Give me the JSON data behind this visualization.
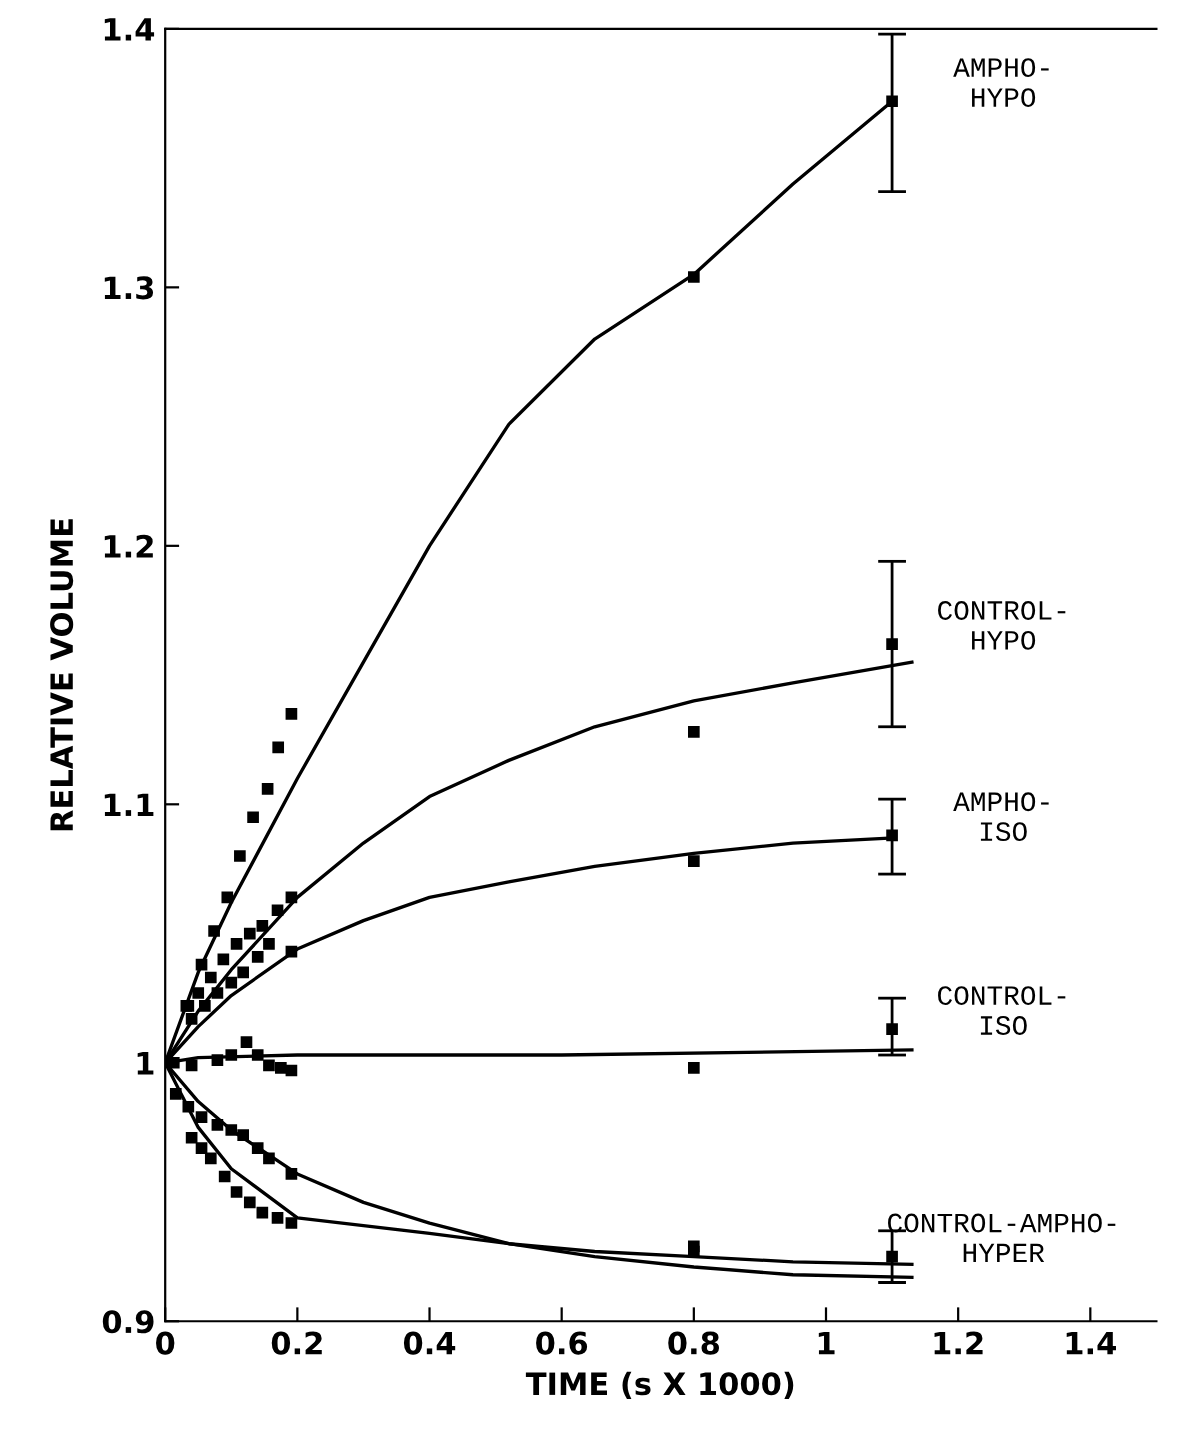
{
  "chart_data": {
    "type": "scatter",
    "xlabel": "TIME (s X 1000)",
    "ylabel": "RELATIVE VOLUME",
    "xlim": [
      0,
      1.5
    ],
    "ylim": [
      0.9,
      1.4
    ],
    "xticks": [
      0,
      0.2,
      0.4,
      0.6,
      0.8,
      1,
      1.2,
      1.4
    ],
    "yticks": [
      0.9,
      1,
      1.1,
      1.2,
      1.3,
      1.4
    ],
    "grid": false,
    "marker": "square",
    "series": [
      {
        "name": "AMPHO-\nHYPO",
        "color": "#000000",
        "x": [
          0.035,
          0.055,
          0.074,
          0.094,
          0.113,
          0.133,
          0.155,
          0.171,
          0.191,
          0.8,
          1.1
        ],
        "values": [
          1.022,
          1.038,
          1.051,
          1.064,
          1.08,
          1.095,
          1.106,
          1.122,
          1.135,
          1.304,
          1.372
        ],
        "errors": [
          null,
          null,
          null,
          null,
          null,
          null,
          null,
          null,
          null,
          null,
          [
            1.337,
            1.398
          ]
        ]
      },
      {
        "name": "CONTROL-\nHYPO",
        "color": "#000000",
        "x": [
          0.032,
          0.05,
          0.069,
          0.088,
          0.108,
          0.128,
          0.147,
          0.17,
          0.191,
          0.8,
          1.1
        ],
        "values": [
          1.022,
          1.027,
          1.033,
          1.04,
          1.046,
          1.05,
          1.053,
          1.059,
          1.064,
          1.128,
          1.162
        ],
        "errors": [
          null,
          null,
          null,
          null,
          null,
          null,
          null,
          null,
          null,
          null,
          [
            1.13,
            1.194
          ]
        ]
      },
      {
        "name": "AMPHO-\nISO",
        "color": "#000000",
        "x": [
          0.04,
          0.06,
          0.079,
          0.1,
          0.118,
          0.14,
          0.157,
          0.191,
          0.8,
          1.1
        ],
        "values": [
          1.017,
          1.022,
          1.027,
          1.031,
          1.035,
          1.041,
          1.046,
          1.043,
          1.078,
          1.088
        ],
        "errors": [
          null,
          null,
          null,
          null,
          null,
          null,
          null,
          null,
          null,
          [
            1.073,
            1.102
          ]
        ]
      },
      {
        "name": "CONTROL-\nISO",
        "color": "#000000",
        "x": [
          0.013,
          0.04,
          0.079,
          0.1,
          0.123,
          0.14,
          0.157,
          0.175,
          0.191,
          0.8,
          1.1
        ],
        "values": [
          1.0,
          0.999,
          1.001,
          1.003,
          1.008,
          1.003,
          0.999,
          0.998,
          0.997,
          0.998,
          1.013
        ],
        "errors": [
          null,
          null,
          null,
          null,
          null,
          null,
          null,
          null,
          null,
          null,
          [
            1.003,
            1.025
          ]
        ]
      },
      {
        "color": "#000000",
        "x": [
          0.035,
          0.055,
          0.079,
          0.1,
          0.118,
          0.14,
          0.157,
          0.191,
          0.8
        ],
        "values": [
          0.983,
          0.979,
          0.976,
          0.974,
          0.972,
          0.967,
          0.963,
          0.957,
          0.929
        ]
      },
      {
        "name": "CONTROL-AMPHO-\nHYPER",
        "color": "#000000",
        "x": [
          0.016,
          0.04,
          0.055,
          0.069,
          0.09,
          0.108,
          0.128,
          0.147,
          0.17,
          0.191,
          0.8,
          1.1
        ],
        "values": [
          0.988,
          0.971,
          0.967,
          0.963,
          0.956,
          0.95,
          0.946,
          0.942,
          0.94,
          0.938,
          0.927,
          0.925
        ],
        "errors": [
          null,
          null,
          null,
          null,
          null,
          null,
          null,
          null,
          null,
          null,
          null,
          [
            0.915,
            0.935
          ]
        ]
      },
      {
        "type": "line",
        "marker": "none",
        "color": "#000000",
        "x": [
          0,
          0.05,
          0.1,
          0.2,
          0.3,
          0.4,
          0.52,
          0.65,
          0.8,
          0.95,
          1.1
        ],
        "values": [
          1.0,
          1.035,
          1.062,
          1.11,
          1.155,
          1.2,
          1.247,
          1.28,
          1.305,
          1.34,
          1.372
        ]
      },
      {
        "type": "line",
        "marker": "none",
        "color": "#000000",
        "x": [
          0,
          0.05,
          0.1,
          0.2,
          0.3,
          0.4,
          0.52,
          0.65,
          0.8,
          0.95,
          1.13
        ],
        "values": [
          1.0,
          1.02,
          1.036,
          1.064,
          1.085,
          1.103,
          1.117,
          1.13,
          1.14,
          1.147,
          1.155
        ]
      },
      {
        "type": "line",
        "marker": "none",
        "color": "#000000",
        "x": [
          0,
          0.05,
          0.1,
          0.2,
          0.3,
          0.4,
          0.52,
          0.65,
          0.8,
          0.95,
          1.1
        ],
        "values": [
          1.0,
          1.014,
          1.026,
          1.044,
          1.055,
          1.064,
          1.07,
          1.076,
          1.081,
          1.085,
          1.087
        ]
      },
      {
        "type": "line",
        "marker": "none",
        "color": "#000000",
        "x": [
          0,
          0.05,
          0.2,
          0.6,
          1.13
        ],
        "values": [
          1.0,
          1.002,
          1.003,
          1.003,
          1.005
        ]
      },
      {
        "type": "line",
        "marker": "none",
        "color": "#000000",
        "x": [
          0,
          0.05,
          0.1,
          0.2,
          0.3,
          0.4,
          0.52,
          0.65,
          0.8,
          0.95,
          1.13
        ],
        "values": [
          1.0,
          0.985,
          0.974,
          0.957,
          0.946,
          0.938,
          0.93,
          0.925,
          0.921,
          0.918,
          0.917
        ]
      },
      {
        "type": "line",
        "marker": "none",
        "color": "#000000",
        "x": [
          0,
          0.05,
          0.1,
          0.2,
          0.3,
          0.4,
          0.52,
          0.65,
          0.8,
          0.95,
          1.13
        ],
        "values": [
          1.0,
          0.975,
          0.959,
          0.94,
          0.937,
          0.934,
          0.93,
          0.927,
          0.925,
          0.923,
          0.922
        ]
      }
    ]
  }
}
